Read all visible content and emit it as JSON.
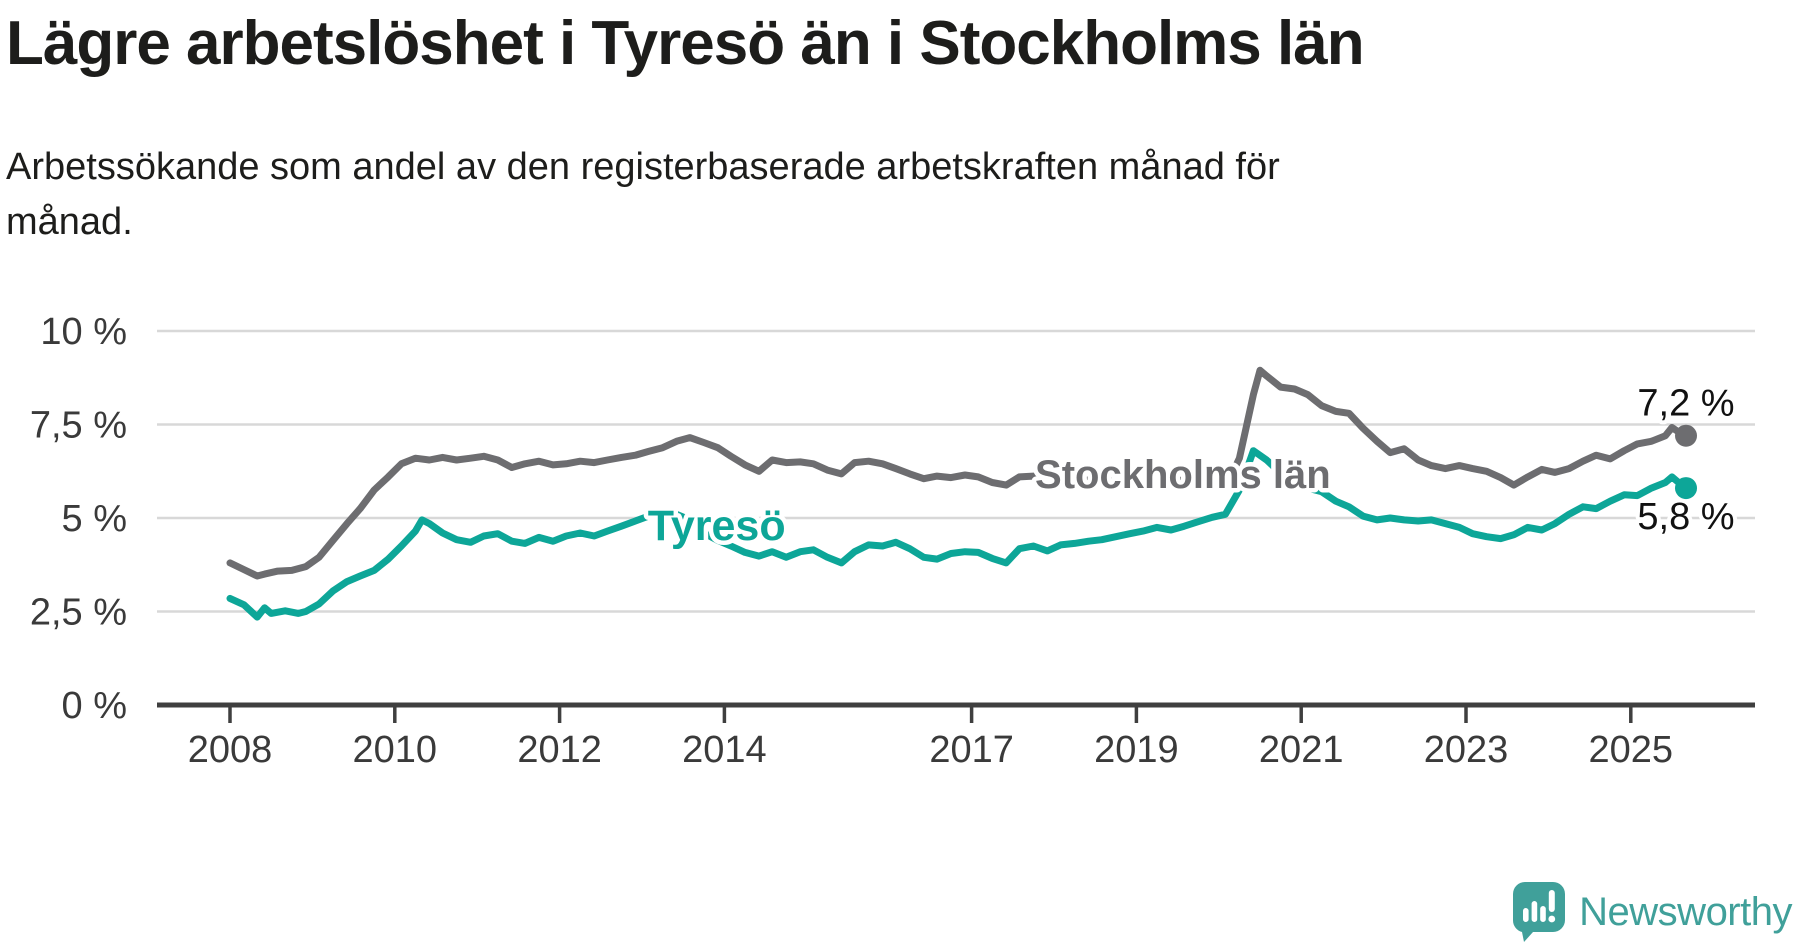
{
  "header": {
    "title": "Lägre arbetslöshet i Tyresö än i Stockholms län",
    "subtitle": "Arbetssökande som andel av den registerbaserade arbetskraften månad för\nmånad."
  },
  "chart_data": {
    "type": "line",
    "unit": "%",
    "ylim": [
      0,
      10
    ],
    "x_range": [
      2008.0,
      2025.67
    ],
    "grid": "horizontal-only",
    "colors": {
      "grid": "#d8d8d8",
      "axis": "#3f3f3f",
      "tick_text": "#3a3a3a",
      "value_label_text": "#111111"
    },
    "y_ticks": [
      {
        "value": 0,
        "label": "0 %"
      },
      {
        "value": 2.5,
        "label": "2,5 %"
      },
      {
        "value": 5,
        "label": "5 %"
      },
      {
        "value": 7.5,
        "label": "7,5 %"
      },
      {
        "value": 10,
        "label": "10 %"
      }
    ],
    "x_ticks": [
      {
        "value": 2008,
        "label": "2008"
      },
      {
        "value": 2010,
        "label": "2010"
      },
      {
        "value": 2012,
        "label": "2012"
      },
      {
        "value": 2014,
        "label": "2014"
      },
      {
        "value": 2017,
        "label": "2017"
      },
      {
        "value": 2019,
        "label": "2019"
      },
      {
        "value": 2021,
        "label": "2021"
      },
      {
        "value": 2023,
        "label": "2023"
      },
      {
        "value": 2025,
        "label": "2025"
      }
    ],
    "series": [
      {
        "name": "Stockholms län",
        "color": "#6d6d70",
        "end_value": 7.2,
        "end_label": "7,2 %",
        "end_label_offset": [
          0,
          -20
        ],
        "inline_label": {
          "text": "Stockholms län",
          "x": 2017.77,
          "y": 5.8,
          "font_size": 40
        },
        "points": [
          [
            2008.0,
            3.8
          ],
          [
            2008.17,
            3.62
          ],
          [
            2008.33,
            3.45
          ],
          [
            2008.42,
            3.5
          ],
          [
            2008.58,
            3.58
          ],
          [
            2008.75,
            3.6
          ],
          [
            2008.92,
            3.7
          ],
          [
            2009.08,
            3.95
          ],
          [
            2009.25,
            4.4
          ],
          [
            2009.42,
            4.85
          ],
          [
            2009.58,
            5.25
          ],
          [
            2009.75,
            5.75
          ],
          [
            2009.92,
            6.1
          ],
          [
            2010.08,
            6.45
          ],
          [
            2010.25,
            6.6
          ],
          [
            2010.42,
            6.55
          ],
          [
            2010.58,
            6.62
          ],
          [
            2010.75,
            6.55
          ],
          [
            2010.92,
            6.6
          ],
          [
            2011.08,
            6.65
          ],
          [
            2011.25,
            6.55
          ],
          [
            2011.42,
            6.35
          ],
          [
            2011.58,
            6.45
          ],
          [
            2011.75,
            6.52
          ],
          [
            2011.92,
            6.42
          ],
          [
            2012.08,
            6.45
          ],
          [
            2012.25,
            6.52
          ],
          [
            2012.42,
            6.48
          ],
          [
            2012.58,
            6.55
          ],
          [
            2012.75,
            6.62
          ],
          [
            2012.92,
            6.68
          ],
          [
            2013.08,
            6.78
          ],
          [
            2013.25,
            6.88
          ],
          [
            2013.42,
            7.05
          ],
          [
            2013.58,
            7.15
          ],
          [
            2013.75,
            7.02
          ],
          [
            2013.92,
            6.88
          ],
          [
            2014.08,
            6.65
          ],
          [
            2014.25,
            6.42
          ],
          [
            2014.42,
            6.25
          ],
          [
            2014.58,
            6.55
          ],
          [
            2014.75,
            6.48
          ],
          [
            2014.92,
            6.5
          ],
          [
            2015.08,
            6.45
          ],
          [
            2015.25,
            6.28
          ],
          [
            2015.42,
            6.18
          ],
          [
            2015.58,
            6.48
          ],
          [
            2015.75,
            6.52
          ],
          [
            2015.92,
            6.45
          ],
          [
            2016.08,
            6.32
          ],
          [
            2016.25,
            6.18
          ],
          [
            2016.42,
            6.05
          ],
          [
            2016.58,
            6.12
          ],
          [
            2016.75,
            6.08
          ],
          [
            2016.92,
            6.15
          ],
          [
            2017.08,
            6.1
          ],
          [
            2017.25,
            5.95
          ],
          [
            2017.42,
            5.88
          ],
          [
            2017.58,
            6.1
          ],
          [
            2017.75,
            6.12
          ],
          [
            2017.92,
            6.08
          ],
          [
            2018.08,
            6.05
          ],
          [
            2018.25,
            5.98
          ],
          [
            2018.42,
            6.02
          ],
          [
            2018.58,
            6.05
          ],
          [
            2018.75,
            5.95
          ],
          [
            2018.92,
            5.92
          ],
          [
            2019.08,
            5.98
          ],
          [
            2019.25,
            5.92
          ],
          [
            2019.42,
            5.98
          ],
          [
            2019.58,
            6.02
          ],
          [
            2019.75,
            5.92
          ],
          [
            2019.92,
            5.85
          ],
          [
            2020.08,
            5.8
          ],
          [
            2020.25,
            6.6
          ],
          [
            2020.42,
            8.3
          ],
          [
            2020.5,
            8.95
          ],
          [
            2020.58,
            8.8
          ],
          [
            2020.75,
            8.5
          ],
          [
            2020.92,
            8.45
          ],
          [
            2021.08,
            8.3
          ],
          [
            2021.25,
            8.0
          ],
          [
            2021.42,
            7.85
          ],
          [
            2021.58,
            7.8
          ],
          [
            2021.75,
            7.4
          ],
          [
            2021.92,
            7.05
          ],
          [
            2022.08,
            6.75
          ],
          [
            2022.25,
            6.85
          ],
          [
            2022.42,
            6.55
          ],
          [
            2022.58,
            6.4
          ],
          [
            2022.75,
            6.32
          ],
          [
            2022.92,
            6.4
          ],
          [
            2023.08,
            6.32
          ],
          [
            2023.25,
            6.25
          ],
          [
            2023.42,
            6.08
          ],
          [
            2023.58,
            5.88
          ],
          [
            2023.75,
            6.1
          ],
          [
            2023.92,
            6.3
          ],
          [
            2024.08,
            6.22
          ],
          [
            2024.25,
            6.32
          ],
          [
            2024.42,
            6.52
          ],
          [
            2024.58,
            6.68
          ],
          [
            2024.75,
            6.58
          ],
          [
            2024.92,
            6.8
          ],
          [
            2025.08,
            6.98
          ],
          [
            2025.25,
            7.05
          ],
          [
            2025.42,
            7.2
          ],
          [
            2025.5,
            7.42
          ],
          [
            2025.58,
            7.3
          ],
          [
            2025.67,
            7.2
          ]
        ]
      },
      {
        "name": "Tyresö",
        "color": "#0da698",
        "end_value": 5.8,
        "end_label": "5,8 %",
        "end_label_offset": [
          0,
          41
        ],
        "inline_label": {
          "text": "Tyresö",
          "x": 2013.07,
          "y": 4.41,
          "font_size": 43
        },
        "points": [
          [
            2008.0,
            2.85
          ],
          [
            2008.17,
            2.68
          ],
          [
            2008.33,
            2.35
          ],
          [
            2008.42,
            2.6
          ],
          [
            2008.5,
            2.45
          ],
          [
            2008.67,
            2.52
          ],
          [
            2008.83,
            2.45
          ],
          [
            2008.92,
            2.5
          ],
          [
            2009.08,
            2.7
          ],
          [
            2009.25,
            3.05
          ],
          [
            2009.42,
            3.3
          ],
          [
            2009.58,
            3.45
          ],
          [
            2009.75,
            3.6
          ],
          [
            2009.92,
            3.9
          ],
          [
            2010.08,
            4.25
          ],
          [
            2010.25,
            4.65
          ],
          [
            2010.33,
            4.95
          ],
          [
            2010.42,
            4.85
          ],
          [
            2010.58,
            4.6
          ],
          [
            2010.75,
            4.42
          ],
          [
            2010.92,
            4.35
          ],
          [
            2011.08,
            4.52
          ],
          [
            2011.25,
            4.58
          ],
          [
            2011.42,
            4.38
          ],
          [
            2011.58,
            4.32
          ],
          [
            2011.75,
            4.48
          ],
          [
            2011.92,
            4.38
          ],
          [
            2012.08,
            4.52
          ],
          [
            2012.25,
            4.6
          ],
          [
            2012.42,
            4.52
          ],
          [
            2012.58,
            4.65
          ],
          [
            2012.75,
            4.78
          ],
          [
            2012.92,
            4.92
          ],
          [
            2013.08,
            5.05
          ],
          [
            2013.25,
            5.15
          ],
          [
            2013.42,
            5.1
          ],
          [
            2013.58,
            4.95
          ],
          [
            2013.75,
            4.6
          ],
          [
            2013.92,
            4.4
          ],
          [
            2014.08,
            4.25
          ],
          [
            2014.25,
            4.08
          ],
          [
            2014.42,
            3.98
          ],
          [
            2014.58,
            4.1
          ],
          [
            2014.75,
            3.95
          ],
          [
            2014.92,
            4.1
          ],
          [
            2015.08,
            4.15
          ],
          [
            2015.25,
            3.95
          ],
          [
            2015.42,
            3.8
          ],
          [
            2015.58,
            4.1
          ],
          [
            2015.75,
            4.28
          ],
          [
            2015.92,
            4.25
          ],
          [
            2016.08,
            4.35
          ],
          [
            2016.25,
            4.18
          ],
          [
            2016.42,
            3.95
          ],
          [
            2016.58,
            3.9
          ],
          [
            2016.75,
            4.05
          ],
          [
            2016.92,
            4.1
          ],
          [
            2017.08,
            4.08
          ],
          [
            2017.25,
            3.92
          ],
          [
            2017.42,
            3.8
          ],
          [
            2017.58,
            4.18
          ],
          [
            2017.75,
            4.25
          ],
          [
            2017.92,
            4.12
          ],
          [
            2018.08,
            4.28
          ],
          [
            2018.25,
            4.32
          ],
          [
            2018.42,
            4.38
          ],
          [
            2018.58,
            4.42
          ],
          [
            2018.75,
            4.5
          ],
          [
            2018.92,
            4.58
          ],
          [
            2019.08,
            4.65
          ],
          [
            2019.25,
            4.75
          ],
          [
            2019.42,
            4.68
          ],
          [
            2019.58,
            4.78
          ],
          [
            2019.75,
            4.9
          ],
          [
            2019.92,
            5.02
          ],
          [
            2020.08,
            5.1
          ],
          [
            2020.25,
            5.75
          ],
          [
            2020.42,
            6.8
          ],
          [
            2020.58,
            6.55
          ],
          [
            2020.75,
            6.2
          ],
          [
            2020.92,
            5.9
          ],
          [
            2021.08,
            5.8
          ],
          [
            2021.25,
            5.7
          ],
          [
            2021.42,
            5.45
          ],
          [
            2021.58,
            5.3
          ],
          [
            2021.75,
            5.05
          ],
          [
            2021.92,
            4.95
          ],
          [
            2022.08,
            5.0
          ],
          [
            2022.25,
            4.95
          ],
          [
            2022.42,
            4.92
          ],
          [
            2022.58,
            4.95
          ],
          [
            2022.75,
            4.85
          ],
          [
            2022.92,
            4.75
          ],
          [
            2023.08,
            4.58
          ],
          [
            2023.25,
            4.5
          ],
          [
            2023.42,
            4.45
          ],
          [
            2023.58,
            4.55
          ],
          [
            2023.75,
            4.75
          ],
          [
            2023.92,
            4.68
          ],
          [
            2024.08,
            4.85
          ],
          [
            2024.25,
            5.1
          ],
          [
            2024.42,
            5.3
          ],
          [
            2024.58,
            5.25
          ],
          [
            2024.75,
            5.45
          ],
          [
            2024.92,
            5.62
          ],
          [
            2025.08,
            5.6
          ],
          [
            2025.25,
            5.8
          ],
          [
            2025.42,
            5.95
          ],
          [
            2025.5,
            6.1
          ],
          [
            2025.58,
            5.95
          ],
          [
            2025.67,
            5.85
          ]
        ]
      }
    ]
  },
  "branding": {
    "logo_text": "Newsworthy",
    "logo_color": "#40a09a",
    "logo_icon": "speech-bubble-bar-chart-exclamation"
  }
}
